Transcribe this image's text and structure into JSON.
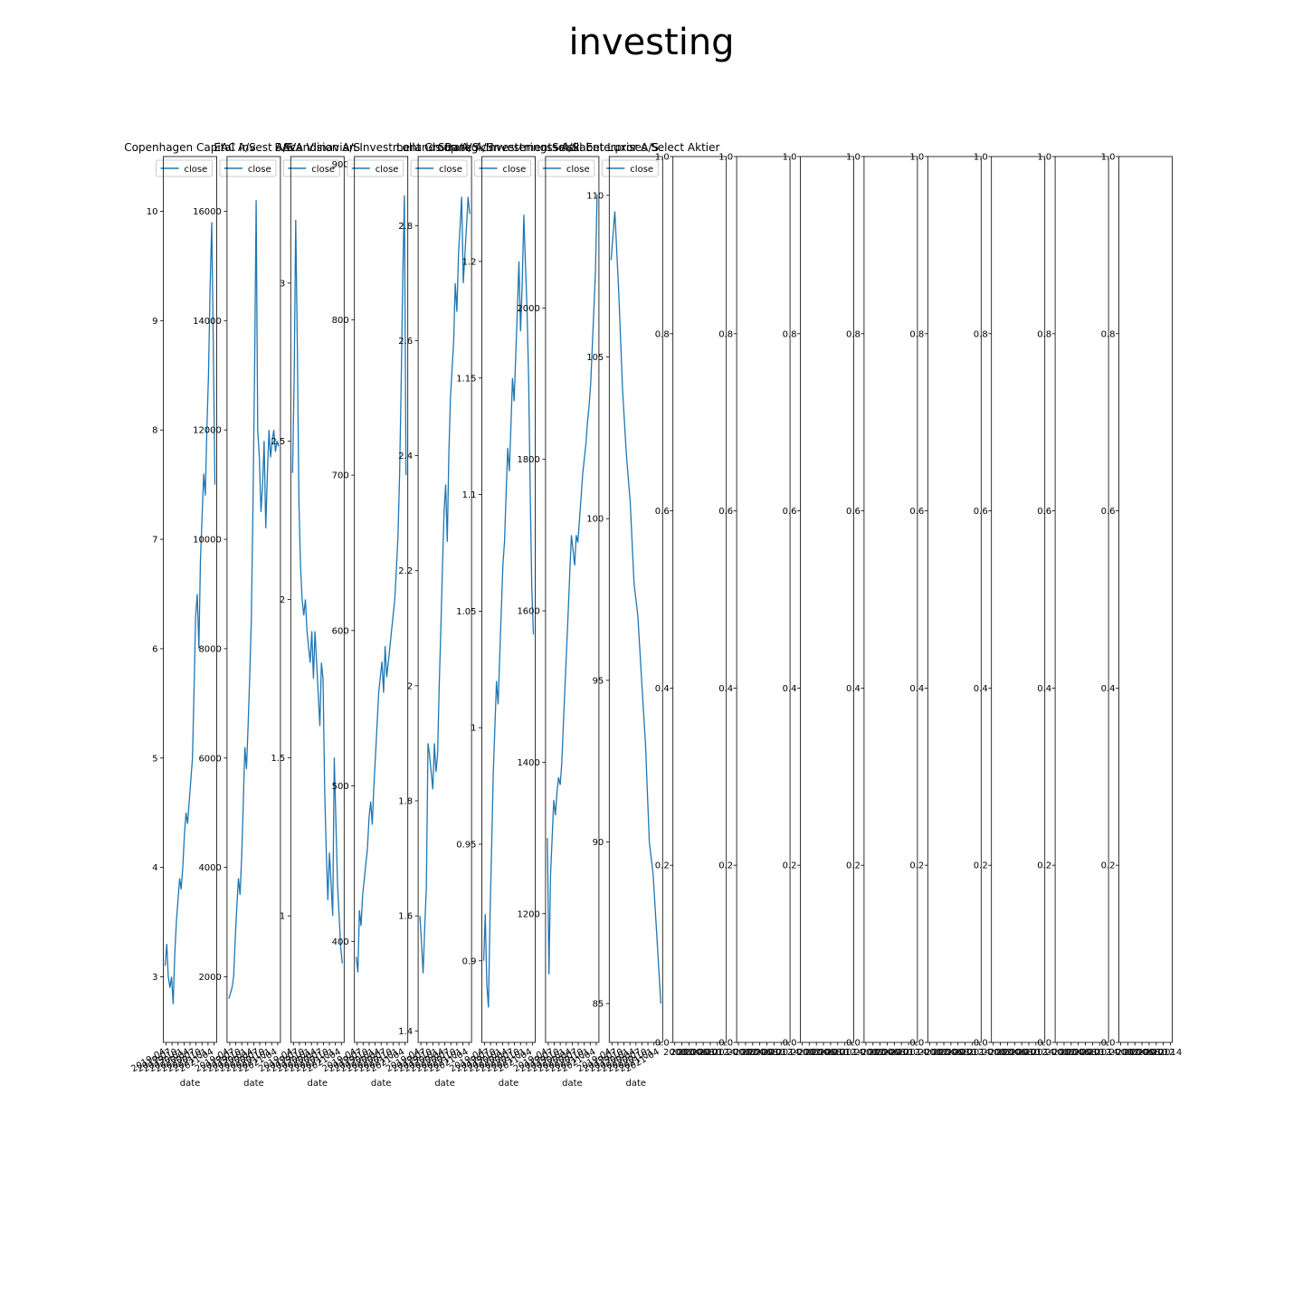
{
  "figure": {
    "title": "investing"
  },
  "colors": {
    "line": "#1f77b4",
    "axes": "#000000",
    "legend_border": "#cccccc"
  },
  "empty_axes_count": 8,
  "empty_axes_yticks": [
    "0.0",
    "0.2",
    "0.4",
    "0.6",
    "0.8",
    "1.0"
  ],
  "empty_axes_xticks": [
    "2000",
    "2002",
    "2004",
    "2006",
    "2008",
    "2010",
    "2012",
    "2014"
  ],
  "chart_data": [
    {
      "type": "line",
      "title": "Copenhagen Capital A/S",
      "xlabel": "date",
      "legend": "close",
      "legend_position": "upper-left",
      "x_tick_labels": [
        "2019-04",
        "2019-07",
        "2019-10",
        "2020-01",
        "2020-04",
        "2020-07",
        "2020-10",
        "2021-01",
        "2021-04"
      ],
      "ylim": [
        2.4,
        10.5
      ],
      "yticks": [
        3,
        4,
        5,
        6,
        7,
        8,
        9,
        10
      ],
      "series": [
        {
          "values": [
            3.1,
            3.3,
            3.0,
            2.9,
            3.0,
            2.75,
            3.2,
            3.5,
            3.7,
            3.9,
            3.8,
            4.0,
            4.3,
            4.5,
            4.4,
            4.6,
            4.8,
            5.0,
            5.6,
            6.3,
            6.5,
            6.0,
            6.8,
            7.2,
            7.6,
            7.4,
            8.0,
            8.5,
            9.3,
            9.9,
            8.8,
            7.5
          ]
        }
      ]
    },
    {
      "type": "line",
      "title": "EAC Invest A/S",
      "xlabel": "date",
      "legend": "close",
      "legend_position": "upper-left",
      "x_tick_labels": [
        "2019-04",
        "2019-07",
        "2019-10",
        "2020-01",
        "2020-04",
        "2020-07",
        "2020-10",
        "2021-01",
        "2021-04"
      ],
      "ylim": [
        800,
        17000
      ],
      "yticks": [
        2000,
        4000,
        6000,
        8000,
        10000,
        12000,
        14000,
        16000
      ],
      "series": [
        {
          "values": [
            1600,
            1700,
            1800,
            2000,
            2700,
            3300,
            3800,
            3500,
            4200,
            5200,
            6200,
            5800,
            6600,
            7500,
            8500,
            10500,
            13000,
            16200,
            12000,
            11500,
            10500,
            11000,
            11800,
            10200,
            11200,
            12000,
            11500,
            11800,
            12000,
            11600,
            11800,
            11700
          ]
        }
      ]
    },
    {
      "type": "line",
      "title": "BAVA Vision A/S",
      "xlabel": "date",
      "legend": "close",
      "legend_position": "upper-left",
      "x_tick_labels": [
        "2019-04",
        "2019-07",
        "2019-10",
        "2020-01",
        "2020-04",
        "2020-07",
        "2020-10",
        "2021-01",
        "2021-04"
      ],
      "ylim": [
        0.6,
        3.4
      ],
      "yticks": [
        1.0,
        1.5,
        2.0,
        2.5,
        3.0
      ],
      "series": [
        {
          "values": [
            2.4,
            2.7,
            3.2,
            2.8,
            2.3,
            2.1,
            2.0,
            1.95,
            2.0,
            1.9,
            1.85,
            1.8,
            1.9,
            1.75,
            1.9,
            1.8,
            1.7,
            1.6,
            1.8,
            1.75,
            1.4,
            1.2,
            1.05,
            1.2,
            1.1,
            1.0,
            1.5,
            1.3,
            1.1,
            1.0,
            0.9,
            0.85
          ]
        }
      ]
    },
    {
      "type": "line",
      "title": "Scandinavian Investment Group A/S",
      "xlabel": "date",
      "legend": "close",
      "legend_position": "upper-left",
      "x_tick_labels": [
        "2019-04",
        "2019-07",
        "2019-10",
        "2020-01",
        "2020-04",
        "2020-07",
        "2020-10",
        "2021-01",
        "2021-04"
      ],
      "ylim": [
        335,
        905
      ],
      "yticks": [
        400,
        500,
        600,
        700,
        800,
        900
      ],
      "series": [
        {
          "values": [
            390,
            380,
            420,
            410,
            430,
            440,
            450,
            460,
            480,
            490,
            475,
            500,
            520,
            540,
            560,
            570,
            580,
            560,
            590,
            570,
            580,
            590,
            600,
            610,
            620,
            640,
            660,
            700,
            760,
            830,
            880,
            700
          ]
        }
      ]
    },
    {
      "type": "line",
      "title": "Lollands Bank A/S",
      "xlabel": "date",
      "legend": "close",
      "legend_position": "upper-left",
      "x_tick_labels": [
        "2019-04",
        "2019-07",
        "2019-10",
        "2020-01",
        "2020-04",
        "2020-07",
        "2020-10",
        "2021-01",
        "2021-04"
      ],
      "ylim": [
        1.38,
        2.92
      ],
      "yticks": [
        1.4,
        1.6,
        1.8,
        2.0,
        2.2,
        2.4,
        2.6,
        2.8
      ],
      "series": [
        {
          "values": [
            1.6,
            1.55,
            1.5,
            1.58,
            1.65,
            1.9,
            1.88,
            1.85,
            1.82,
            1.9,
            1.85,
            1.88,
            2.0,
            2.1,
            2.2,
            2.3,
            2.35,
            2.25,
            2.4,
            2.5,
            2.55,
            2.6,
            2.7,
            2.65,
            2.75,
            2.8,
            2.85,
            2.7,
            2.75,
            2.8,
            2.85,
            2.82
          ]
        }
      ]
    },
    {
      "type": "line",
      "title": "Strategic Investments A/S",
      "xlabel": "date",
      "legend": "close",
      "legend_position": "upper-left",
      "x_tick_labels": [
        "2019-04",
        "2019-07",
        "2019-10",
        "2020-01",
        "2020-04",
        "2020-07",
        "2020-10",
        "2021-01",
        "2021-04"
      ],
      "ylim": [
        0.865,
        1.245
      ],
      "yticks": [
        0.9,
        0.95,
        1.0,
        1.05,
        1.1,
        1.15,
        1.2
      ],
      "series": [
        {
          "values": [
            0.9,
            0.92,
            0.89,
            0.88,
            0.92,
            0.95,
            0.98,
            1.0,
            1.02,
            1.01,
            1.03,
            1.05,
            1.07,
            1.08,
            1.1,
            1.12,
            1.11,
            1.13,
            1.15,
            1.14,
            1.16,
            1.18,
            1.2,
            1.17,
            1.19,
            1.22,
            1.2,
            1.18,
            1.15,
            1.1,
            1.06,
            1.04
          ]
        }
      ]
    },
    {
      "type": "line",
      "title": "Investeringsselskabet Luxor A/S",
      "xlabel": "date",
      "legend": "close",
      "legend_position": "upper-left",
      "x_tick_labels": [
        "2019-04",
        "2019-07",
        "2019-10",
        "2020-01",
        "2020-04",
        "2020-07",
        "2020-10",
        "2021-01",
        "2021-04"
      ],
      "ylim": [
        1030,
        2200
      ],
      "yticks": [
        1200,
        1400,
        1600,
        1800,
        2000
      ],
      "series": [
        {
          "values": [
            1300,
            1120,
            1250,
            1300,
            1350,
            1330,
            1360,
            1380,
            1370,
            1400,
            1450,
            1500,
            1550,
            1600,
            1650,
            1700,
            1680,
            1660,
            1700,
            1690,
            1720,
            1750,
            1780,
            1800,
            1820,
            1850,
            1870,
            1900,
            1950,
            2000,
            2050,
            2150
          ]
        }
      ]
    },
    {
      "type": "line",
      "title": "Small Enterprises Select Aktier",
      "xlabel": "date",
      "legend": "close",
      "legend_position": "upper-left",
      "x_tick_labels": [
        "2019-04",
        "2019-07",
        "2019-10",
        "2020-01",
        "2020-04",
        "2020-07",
        "2020-10",
        "2021-01",
        "2021-04"
      ],
      "ylim": [
        83.8,
        111.2
      ],
      "yticks": [
        85,
        90,
        95,
        100,
        105,
        110
      ],
      "series": [
        {
          "values": [
            108,
            109.5,
            107,
            104,
            102,
            100.5,
            98,
            97,
            95,
            93,
            90,
            89,
            87,
            85
          ]
        }
      ]
    }
  ]
}
